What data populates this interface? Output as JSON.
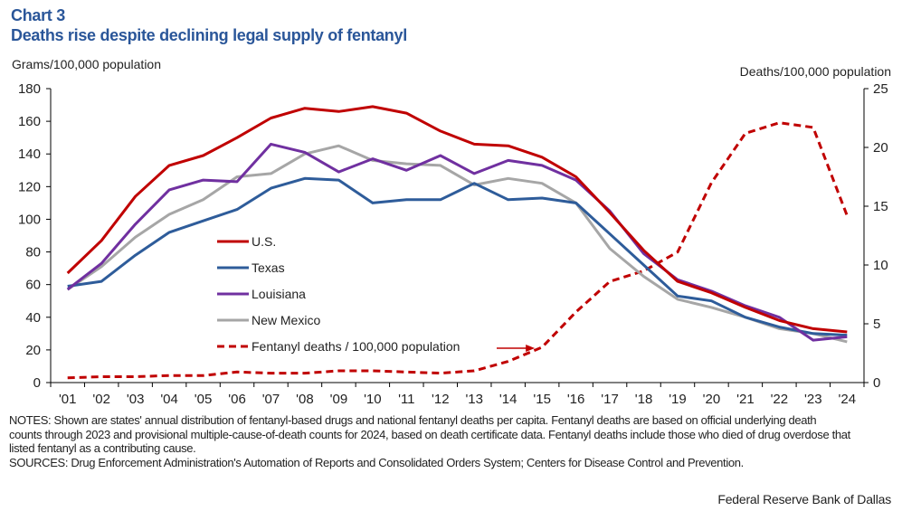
{
  "header": {
    "chart_number": "Chart 3",
    "title": "Deaths rise despite declining legal supply of fentanyl"
  },
  "footer": {
    "notes": "NOTES: Shown are states' annual distribution of fentanyl-based drugs and national fentanyl deaths per capita. Fentanyl deaths are based on official underlying death counts through 2023 and provisional multiple-cause-of-death counts for 2024, based on death certificate data. Fentanyl deaths include those who died of drug overdose that listed fentanyl as a contributing cause.",
    "sources": "SOURCES: Drug Enforcement Administration's Automation of Reports and Consolidated Orders System; Centers for Disease Control and Prevention.",
    "credit": "Federal Reserve Bank of Dallas"
  },
  "chart_data": {
    "type": "line",
    "title": "Deaths rise despite declining legal supply of fentanyl",
    "xlabel": "",
    "ylabel": "Grams/100,000 population",
    "y2label": "Deaths/100,000 population",
    "ylim": [
      0,
      180
    ],
    "y2lim": [
      0,
      25
    ],
    "yticks": [
      "0",
      "20",
      "40",
      "60",
      "80",
      "100",
      "120",
      "140",
      "160",
      "180"
    ],
    "y2ticks": [
      "0",
      "5",
      "10",
      "15",
      "20",
      "25"
    ],
    "grid": false,
    "legend_position": "center-left",
    "categories": [
      "'01",
      "'02",
      "'03",
      "'04",
      "'05",
      "'06",
      "'07",
      "'08",
      "'09",
      "'10",
      "'11",
      "'12",
      "'13",
      "'14",
      "'15",
      "'16",
      "'17",
      "'18",
      "'19",
      "'20",
      "'21",
      "'22",
      "'23",
      "'24"
    ],
    "series": [
      {
        "name": "U.S.",
        "axis": "left",
        "color": "#c00000",
        "style": "solid",
        "values": [
          67,
          87,
          114,
          133,
          139,
          150,
          162,
          168,
          166,
          169,
          165,
          154,
          146,
          145,
          138,
          126,
          104,
          81,
          62,
          55,
          46,
          38,
          33,
          31
        ]
      },
      {
        "name": "Texas",
        "axis": "left",
        "color": "#2e5c9a",
        "style": "solid",
        "values": [
          59,
          62,
          78,
          92,
          99,
          106,
          119,
          125,
          124,
          110,
          112,
          112,
          122,
          112,
          113,
          110,
          91,
          72,
          53,
          50,
          40,
          34,
          30,
          29
        ]
      },
      {
        "name": "Louisiana",
        "axis": "left",
        "color": "#7030a0",
        "style": "solid",
        "values": [
          57,
          73,
          97,
          118,
          124,
          123,
          146,
          141,
          129,
          137,
          130,
          139,
          128,
          136,
          133,
          124,
          105,
          79,
          63,
          56,
          47,
          40,
          26,
          28
        ]
      },
      {
        "name": "New Mexico",
        "axis": "left",
        "color": "#a6a6a6",
        "style": "solid",
        "values": [
          57,
          71,
          89,
          103,
          112,
          126,
          128,
          140,
          145,
          136,
          134,
          133,
          121,
          125,
          122,
          110,
          82,
          65,
          51,
          46,
          40,
          33,
          30,
          25
        ]
      },
      {
        "name": "Fentanyl deaths / 100,000 population",
        "axis": "right",
        "color": "#c00000",
        "style": "dashed",
        "values": [
          0.4,
          0.5,
          0.5,
          0.6,
          0.6,
          0.9,
          0.8,
          0.8,
          1.0,
          1.0,
          0.9,
          0.8,
          1.0,
          1.8,
          3.0,
          6.0,
          8.6,
          9.5,
          11.1,
          17.0,
          21.2,
          22.1,
          21.7,
          14.2
        ]
      }
    ],
    "annotations": [
      {
        "type": "arrow",
        "from": "legend-entry Fentanyl deaths / 100,000 population",
        "to_category": "'15",
        "series": "Fentanyl deaths / 100,000 population"
      }
    ]
  }
}
